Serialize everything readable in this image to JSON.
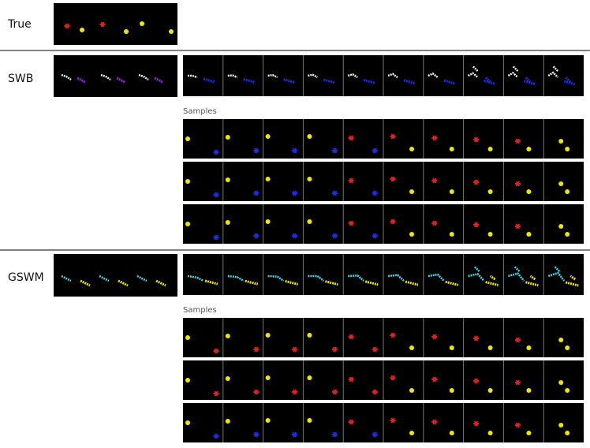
{
  "rows": [
    {
      "label": "True"
    },
    {
      "label": "SWB",
      "samples_label": "Samples"
    },
    {
      "label": "GSWM",
      "samples_label": "Samples"
    }
  ]
}
